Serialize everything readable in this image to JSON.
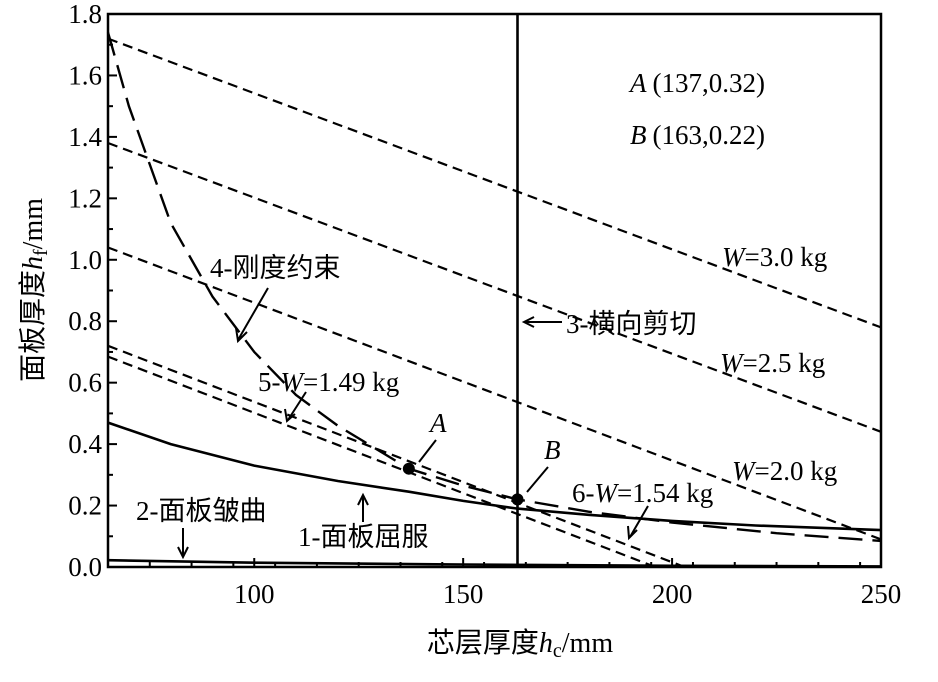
{
  "chart_data": {
    "type": "line",
    "xlabel": "芯层厚度hc/mm",
    "xlabel_parts": {
      "main": "芯层厚度",
      "var": "h",
      "sub": "c",
      "unit": "/mm"
    },
    "ylabel_parts": {
      "main": "面板厚度",
      "var": "h",
      "sub": "f",
      "unit": "/mm"
    },
    "xlim": [
      65,
      250
    ],
    "ylim": [
      0,
      1.8
    ],
    "xticks": [
      100,
      150,
      200,
      250
    ],
    "xtick_labels": [
      "100",
      "150",
      "200",
      "250"
    ],
    "yticks": [
      0,
      0.2,
      0.4,
      0.6,
      0.8,
      1.0,
      1.2,
      1.4,
      1.6,
      1.8
    ],
    "ytick_labels": [
      "0.0",
      "0.2",
      "0.4",
      "0.6",
      "0.8",
      "1.0",
      "1.2",
      "1.4",
      "1.6",
      "1.8"
    ],
    "series": [
      {
        "name": "1-面板屈服",
        "style": "solid",
        "x": [
          65,
          80,
          100,
          120,
          137,
          150,
          163,
          180,
          200,
          220,
          250
        ],
        "y": [
          0.47,
          0.4,
          0.33,
          0.28,
          0.245,
          0.215,
          0.19,
          0.17,
          0.15,
          0.135,
          0.12
        ]
      },
      {
        "name": "2-面板皱曲",
        "style": "solid",
        "x": [
          65,
          100,
          150,
          200,
          250
        ],
        "y": [
          0.022,
          0.014,
          0.008,
          0.004,
          0.002
        ]
      },
      {
        "name": "3-横向剪切",
        "style": "solid",
        "x": [
          163,
          163
        ],
        "y": [
          0,
          1.8
        ]
      },
      {
        "name": "4-刚度约束",
        "style": "longdash",
        "x": [
          65,
          70,
          80,
          90,
          100,
          110,
          120,
          137,
          150,
          163,
          180,
          200,
          225,
          250
        ],
        "y": [
          1.74,
          1.5,
          1.12,
          0.88,
          0.7,
          0.56,
          0.46,
          0.32,
          0.265,
          0.22,
          0.18,
          0.145,
          0.11,
          0.085
        ]
      },
      {
        "name": "5-W=1.49 kg",
        "style": "dash",
        "x": [
          65,
          196
        ],
        "y": [
          0.685,
          0
        ]
      },
      {
        "name": "6-W=1.54 kg",
        "style": "dash",
        "x": [
          65,
          203
        ],
        "y": [
          0.72,
          0
        ]
      },
      {
        "name": "W=2.0 kg",
        "style": "dash",
        "x": [
          65,
          250
        ],
        "y": [
          1.04,
          0.09
        ]
      },
      {
        "name": "W=2.5 kg",
        "style": "dash",
        "x": [
          65,
          250
        ],
        "y": [
          1.38,
          0.44
        ]
      },
      {
        "name": "W=3.0 kg",
        "style": "dash",
        "x": [
          65,
          250
        ],
        "y": [
          1.72,
          0.78
        ]
      }
    ],
    "points": [
      {
        "name": "A",
        "x": 137,
        "y": 0.32
      },
      {
        "name": "B",
        "x": 163,
        "y": 0.22
      }
    ],
    "point_legend": [
      {
        "letter": "A",
        "coords": "(137,0.32)"
      },
      {
        "letter": "B",
        "coords": "(163,0.22)"
      }
    ],
    "labels": {
      "w30_var": "W",
      "w30_val": "=3.0 kg",
      "w25_var": "W",
      "w25_val": "=2.5 kg",
      "w20_var": "W",
      "w20_val": "=2.0 kg",
      "c3": "3-横向剪切",
      "c4": "4-刚度约束",
      "c5_pre": "5-",
      "c5_var": "W",
      "c5_val": "=1.49 kg",
      "c6_pre": "6-",
      "c6_var": "W",
      "c6_val": "=1.54 kg",
      "c1": "1-面板屈服",
      "c2": "2-面板皱曲",
      "A": "A",
      "B": "B"
    }
  }
}
